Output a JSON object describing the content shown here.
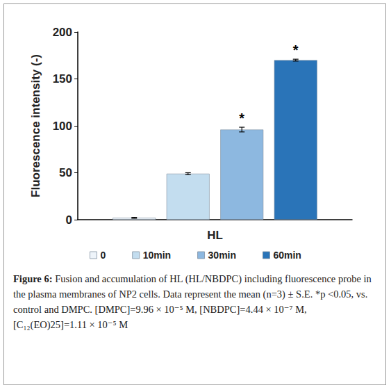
{
  "chart_data": {
    "type": "bar",
    "categories": [
      "HL"
    ],
    "y_label": "Fluorescence intensity (-)",
    "ylim": [
      0,
      200
    ],
    "yticks": [
      0,
      50,
      100,
      150,
      200
    ],
    "grid": false,
    "legend": "bottom",
    "series": [
      {
        "name": "0",
        "color": "#eef4fa",
        "values": [
          2
        ],
        "errors": [
          0.5
        ]
      },
      {
        "name": "10min",
        "color": "#c3ddef",
        "values": [
          49
        ],
        "errors": [
          1
        ]
      },
      {
        "name": "30min",
        "color": "#8db8e0",
        "values": [
          96
        ],
        "errors": [
          2.5
        ],
        "annotation": "*"
      },
      {
        "name": "60min",
        "color": "#2a74b8",
        "values": [
          170
        ],
        "errors": [
          1
        ],
        "annotation": "*"
      }
    ],
    "caption": {
      "label": "Figure 6:",
      "text": "Fusion and accumulation of HL (HL/NBDPC) including fluorescence probe in the plasma membranes of NP2 cells. Data represent the mean (n=3) ± S.E. *p <0.05, vs. control and DMPC. [DMPC]=9.96 × 10⁻⁵ M, [NBDPC]=4.44 × 10⁻⁷ M, [C₁₂(EO)25]=1.11 × 10⁻⁵ M"
    }
  }
}
